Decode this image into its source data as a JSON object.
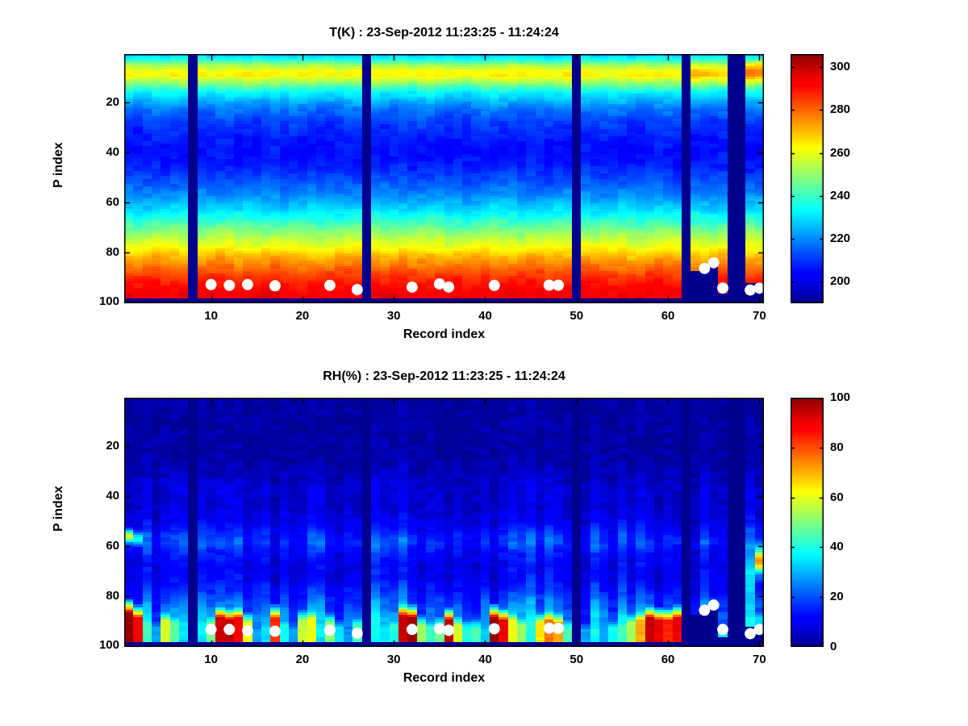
{
  "figure": {
    "background": "#ffffff",
    "missing_data_color": "#000090",
    "marker_color": "#ffffff"
  },
  "chart_data": [
    {
      "id": "temperature",
      "type": "heatmap",
      "title": "T(K) : 23-Sep-2012 11:23:25 - 11:24:24",
      "xlabel": "Record index",
      "ylabel": "P index",
      "x_range": [
        1,
        70
      ],
      "y_range": [
        1,
        100
      ],
      "y_axis_reversed": true,
      "colormap": "jet",
      "value_range": [
        190,
        306
      ],
      "x_ticks": [
        10,
        20,
        30,
        40,
        50,
        60,
        70
      ],
      "y_ticks": [
        20,
        40,
        60,
        80,
        100
      ],
      "colorbar_ticks": [
        200,
        220,
        240,
        260,
        280,
        300
      ],
      "grid": false,
      "missing_records": [
        8,
        27,
        50,
        62,
        67,
        68
      ],
      "data_end_default": 98,
      "data_end_overrides": {
        "63": 87,
        "64": 85,
        "65": 83,
        "66": 96,
        "69": 92,
        "70": 92
      },
      "profile_breakpoints": [
        [
          1,
          227
        ],
        [
          3,
          238
        ],
        [
          5,
          251
        ],
        [
          7,
          261
        ],
        [
          9,
          263
        ],
        [
          11,
          255
        ],
        [
          13,
          246
        ],
        [
          16,
          233
        ],
        [
          19,
          225
        ],
        [
          23,
          217
        ],
        [
          28,
          211
        ],
        [
          34,
          207
        ],
        [
          40,
          205
        ],
        [
          46,
          208
        ],
        [
          52,
          214
        ],
        [
          57,
          220
        ],
        [
          62,
          228
        ],
        [
          66,
          236
        ],
        [
          70,
          245
        ],
        [
          74,
          254
        ],
        [
          78,
          262
        ],
        [
          82,
          271
        ],
        [
          86,
          279
        ],
        [
          90,
          286
        ],
        [
          93,
          290
        ],
        [
          96,
          293
        ],
        [
          98,
          294
        ]
      ],
      "noise_amp": 2.4,
      "anomalies": [
        {
          "records": [
            69,
            70
          ],
          "p_center": 7,
          "p_width": 4,
          "amp": 17
        },
        {
          "records": [
            63,
            64,
            65,
            66
          ],
          "p_center": 8,
          "p_width": 5,
          "amp": 6
        }
      ],
      "markers": [
        [
          10,
          93.0
        ],
        [
          12,
          93.3
        ],
        [
          14,
          93.0
        ],
        [
          17,
          93.5
        ],
        [
          23,
          93.3
        ],
        [
          26,
          95.0
        ],
        [
          32,
          94.0
        ],
        [
          35,
          92.7
        ],
        [
          36,
          94.0
        ],
        [
          41,
          93.3
        ],
        [
          47,
          93.2
        ],
        [
          48,
          93.2
        ],
        [
          64,
          86.5
        ],
        [
          65,
          84.2
        ],
        [
          66,
          94.4
        ],
        [
          69,
          95.2
        ],
        [
          70,
          94.4
        ]
      ]
    },
    {
      "id": "relative_humidity",
      "type": "heatmap",
      "title": "RH(%) : 23-Sep-2012 11:23:25 - 11:24:24",
      "xlabel": "Record index",
      "ylabel": "P index",
      "x_range": [
        1,
        70
      ],
      "y_range": [
        1,
        100
      ],
      "y_axis_reversed": true,
      "colormap": "jet",
      "value_range": [
        0,
        100
      ],
      "x_ticks": [
        10,
        20,
        30,
        40,
        50,
        60,
        70
      ],
      "y_ticks": [
        20,
        40,
        60,
        80,
        100
      ],
      "colorbar_ticks": [
        0,
        20,
        40,
        60,
        80,
        100
      ],
      "grid": false,
      "missing_records": [
        8,
        27,
        50,
        62,
        67,
        68
      ],
      "data_end_default": 98,
      "data_end_overrides": {
        "63": 87,
        "64": 85,
        "65": 83,
        "66": 96,
        "69": 92,
        "70": 92
      },
      "profile_breakpoints": [
        [
          1,
          2
        ],
        [
          25,
          2.5
        ],
        [
          32,
          5
        ],
        [
          38,
          8
        ],
        [
          44,
          7
        ],
        [
          50,
          10
        ],
        [
          55,
          16
        ],
        [
          59,
          19
        ],
        [
          63,
          14
        ],
        [
          68,
          11
        ],
        [
          73,
          12
        ],
        [
          78,
          16
        ],
        [
          83,
          22
        ],
        [
          87,
          26
        ],
        [
          91,
          28
        ],
        [
          95,
          30
        ],
        [
          98,
          28
        ]
      ],
      "noise_amp": 2.6,
      "mid_anomalies": [
        {
          "record": 1,
          "p_center": 56,
          "p_width": 2.5,
          "amp": 48
        },
        {
          "record": 2,
          "p_center": 57,
          "p_width": 2.5,
          "amp": 26
        },
        {
          "record": 69,
          "p_center": 72,
          "p_width": 8,
          "amp": 20
        },
        {
          "record": 70,
          "p_center": 66,
          "p_width": 5,
          "amp": 62
        }
      ],
      "surface_plumes": {
        "1": [
          84,
          100
        ],
        "2": [
          86,
          92
        ],
        "3": [
          88,
          45
        ],
        "4": [
          90,
          30
        ],
        "5": [
          87,
          60
        ],
        "6": [
          88,
          48
        ],
        "7": [
          90,
          28
        ],
        "9": [
          91,
          24
        ],
        "10": [
          88,
          50
        ],
        "11": [
          86,
          95
        ],
        "12": [
          87,
          97
        ],
        "13": [
          86,
          90
        ],
        "14": [
          88,
          62
        ],
        "15": [
          91,
          28
        ],
        "16": [
          90,
          36
        ],
        "17": [
          86,
          85
        ],
        "18": [
          89,
          40
        ],
        "19": [
          91,
          30
        ],
        "20": [
          87,
          58
        ],
        "21": [
          86,
          62
        ],
        "22": [
          90,
          34
        ],
        "23": [
          88,
          52
        ],
        "24": [
          90,
          36
        ],
        "25": [
          91,
          28
        ],
        "26": [
          89,
          46
        ],
        "28": [
          89,
          34
        ],
        "29": [
          90,
          38
        ],
        "30": [
          89,
          42
        ],
        "31": [
          85,
          96
        ],
        "32": [
          86,
          100
        ],
        "33": [
          89,
          55
        ],
        "34": [
          90,
          45
        ],
        "35": [
          89,
          50
        ],
        "36": [
          87,
          97
        ],
        "37": [
          89,
          60
        ],
        "38": [
          90,
          42
        ],
        "39": [
          90,
          46
        ],
        "40": [
          91,
          34
        ],
        "41": [
          86,
          100
        ],
        "42": [
          87,
          92
        ],
        "43": [
          87,
          62
        ],
        "44": [
          89,
          55
        ],
        "45": [
          90,
          40
        ],
        "46": [
          88,
          66
        ],
        "47": [
          87,
          78
        ],
        "48": [
          88,
          72
        ],
        "49": [
          90,
          46
        ],
        "51": [
          91,
          30
        ],
        "52": [
          90,
          36
        ],
        "53": [
          91,
          30
        ],
        "54": [
          90,
          40
        ],
        "55": [
          89,
          46
        ],
        "56": [
          88,
          56
        ],
        "57": [
          87,
          72
        ],
        "58": [
          86,
          96
        ],
        "59": [
          87,
          92
        ],
        "60": [
          87,
          86
        ],
        "61": [
          86,
          92
        ],
        "66": [
          92,
          36
        ],
        "69": [
          92,
          26
        ],
        "70": [
          86,
          35
        ]
      },
      "markers": [
        [
          10,
          93.5
        ],
        [
          12,
          93.5
        ],
        [
          14,
          94.0
        ],
        [
          17,
          94.2
        ],
        [
          23,
          93.8
        ],
        [
          26,
          95.0
        ],
        [
          32,
          93.5
        ],
        [
          35,
          93.2
        ],
        [
          36,
          93.8
        ],
        [
          41,
          93.2
        ],
        [
          47,
          93.0
        ],
        [
          48,
          93.0
        ],
        [
          64,
          85.8
        ],
        [
          65,
          83.7
        ],
        [
          66,
          93.5
        ],
        [
          69,
          95.2
        ],
        [
          70,
          93.5
        ]
      ]
    }
  ]
}
